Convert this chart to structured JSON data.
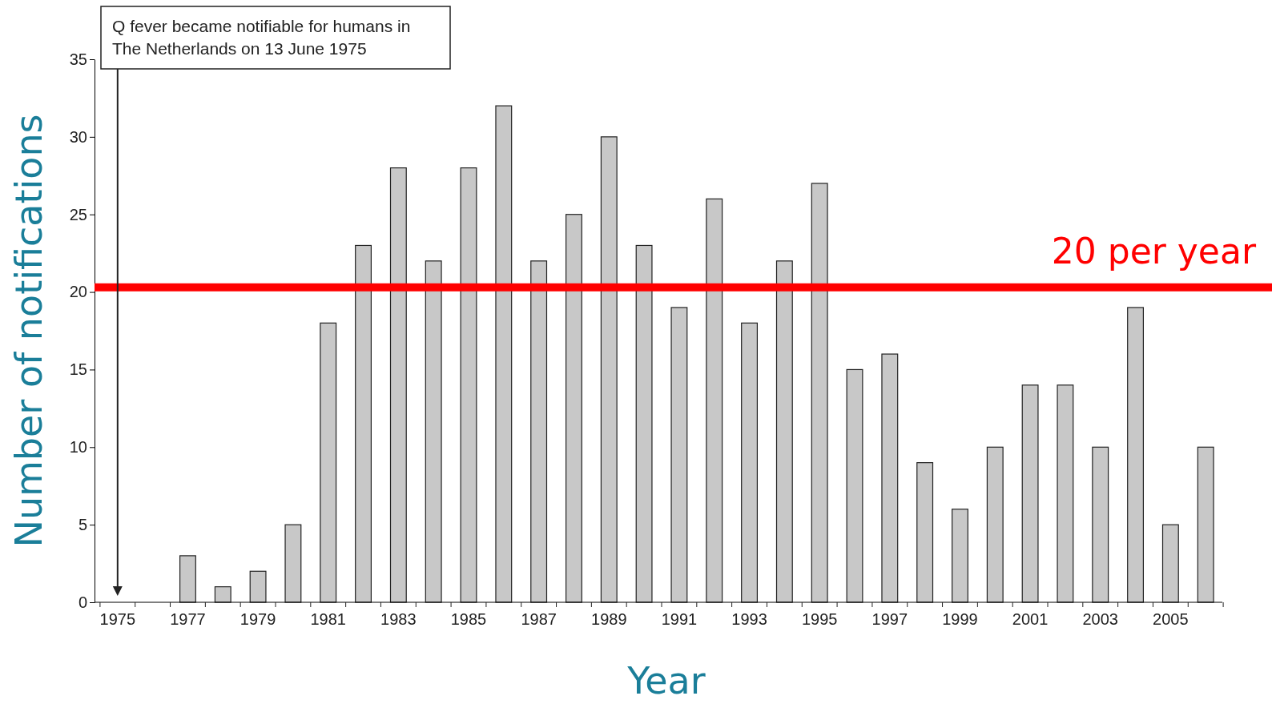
{
  "chart_data": {
    "type": "bar",
    "ylabel": "Number of notifications",
    "xlabel": "Year",
    "categories": [
      "1975",
      null,
      "1977",
      null,
      "1979",
      null,
      "1981",
      null,
      "1983",
      null,
      "1985",
      null,
      "1987",
      null,
      "1989",
      null,
      "1991",
      null,
      "1993",
      null,
      "1995",
      null,
      "1997",
      null,
      "1999",
      null,
      "2001",
      null,
      "2003",
      null,
      "2005",
      null
    ],
    "values": [
      0,
      0,
      3,
      1,
      2,
      5,
      18,
      23,
      28,
      22,
      28,
      32,
      22,
      25,
      30,
      23,
      19,
      26,
      18,
      22,
      27,
      15,
      16,
      9,
      6,
      10,
      14,
      14,
      10,
      19,
      5,
      10
    ],
    "color": "#c8c8c8",
    "ylim": [
      0,
      35
    ],
    "yticks": [
      0,
      5,
      10,
      15,
      20,
      25,
      30,
      35
    ],
    "grid": false,
    "ref_lines": [
      {
        "axis": "y",
        "value": 20.3,
        "label": "20 per year",
        "color": "#ff0000"
      }
    ],
    "annotations": [
      "Q fever became notifiable for humans in The Netherlands on 13 June 1975"
    ]
  }
}
